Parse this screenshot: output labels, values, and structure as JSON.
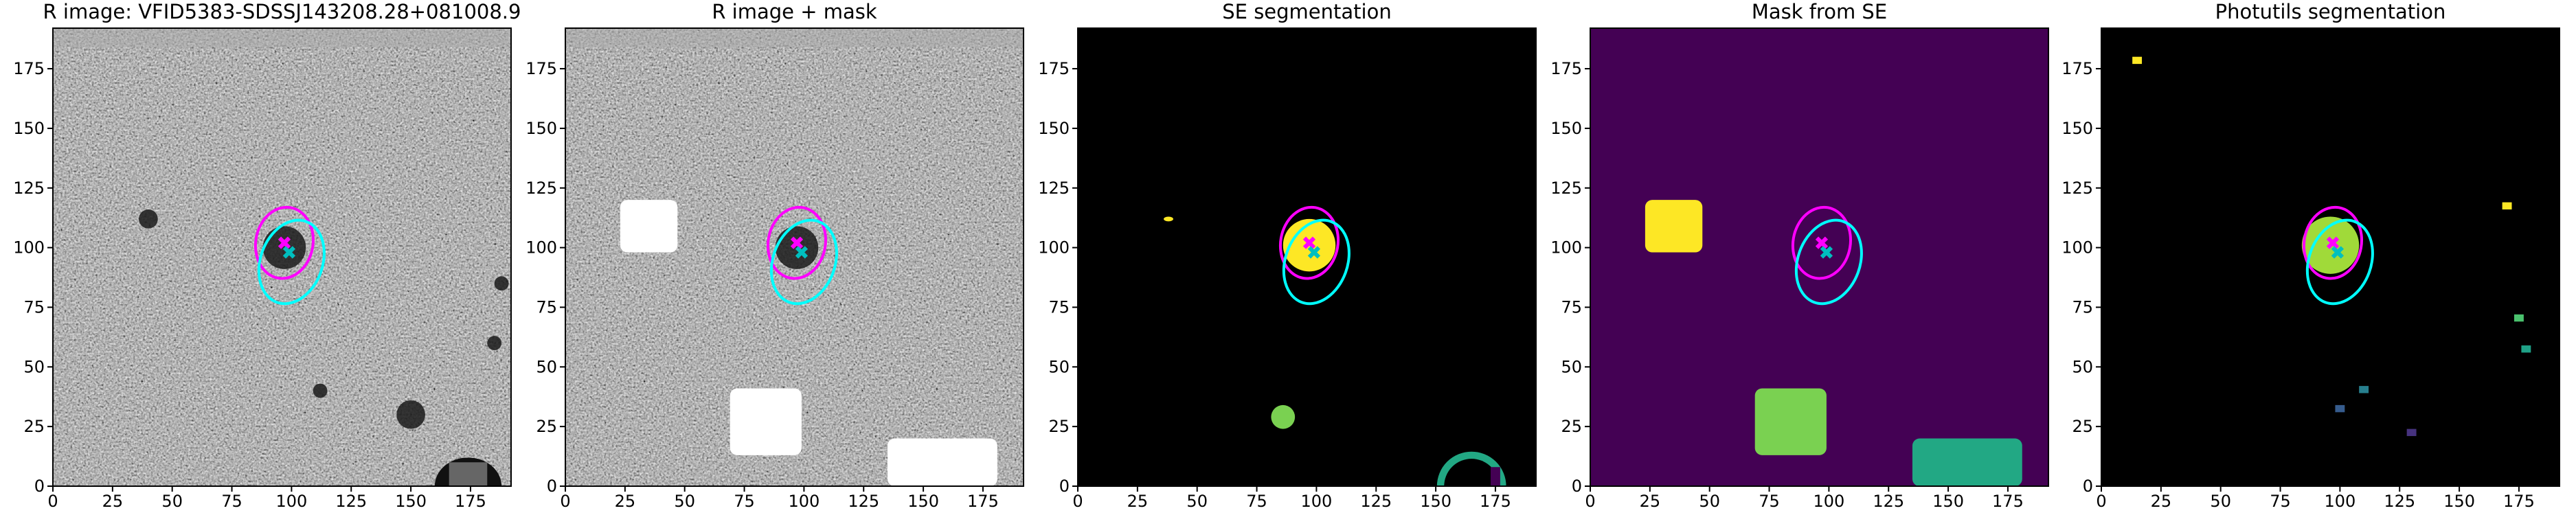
{
  "chart_data": [
    {
      "type": "image",
      "title": "R image: VFID5383-SDSSJ143208.28+081008.9",
      "xlim": [
        0,
        192
      ],
      "ylim": [
        0,
        192
      ],
      "xticks": [
        0,
        25,
        50,
        75,
        100,
        125,
        150,
        175
      ],
      "yticks": [
        0,
        25,
        50,
        75,
        100,
        125,
        150,
        175
      ],
      "ellipses": [
        {
          "x": 97,
          "y": 102,
          "width": 24,
          "height": 30,
          "angle": 10,
          "color": "#ff00ff"
        },
        {
          "x": 100,
          "y": 94,
          "width": 26,
          "height": 36,
          "angle": 20,
          "color": "#00ffff"
        }
      ],
      "markers": [
        {
          "x": 97,
          "y": 102,
          "color": "#ff00ff"
        },
        {
          "x": 99,
          "y": 98,
          "color": "#00bfbf"
        }
      ]
    },
    {
      "type": "image",
      "title": "R image + mask",
      "xlim": [
        0,
        192
      ],
      "ylim": [
        0,
        192
      ],
      "xticks": [
        0,
        25,
        50,
        75,
        100,
        125,
        150,
        175
      ],
      "yticks": [
        0,
        25,
        50,
        75,
        100,
        125,
        150,
        175
      ],
      "ellipses": [
        {
          "x": 97,
          "y": 102,
          "width": 24,
          "height": 30,
          "angle": 10,
          "color": "#ff00ff"
        },
        {
          "x": 100,
          "y": 94,
          "width": 26,
          "height": 36,
          "angle": 20,
          "color": "#00ffff"
        }
      ],
      "markers": [
        {
          "x": 97,
          "y": 102,
          "color": "#ff00ff"
        },
        {
          "x": 99,
          "y": 98,
          "color": "#00bfbf"
        }
      ]
    },
    {
      "type": "image",
      "title": "SE segmentation",
      "xlim": [
        0,
        192
      ],
      "ylim": [
        0,
        192
      ],
      "xticks": [
        0,
        25,
        50,
        75,
        100,
        125,
        150,
        175
      ],
      "yticks": [
        0,
        25,
        50,
        75,
        100,
        125,
        150,
        175
      ],
      "ellipses": [
        {
          "x": 97,
          "y": 102,
          "width": 24,
          "height": 30,
          "angle": 10,
          "color": "#ff00ff"
        },
        {
          "x": 100,
          "y": 94,
          "width": 26,
          "height": 36,
          "angle": 20,
          "color": "#00ffff"
        }
      ],
      "markers": [
        {
          "x": 97,
          "y": 102,
          "color": "#ff00ff"
        },
        {
          "x": 99,
          "y": 98,
          "color": "#00bfbf"
        }
      ]
    },
    {
      "type": "image",
      "title": "Mask from SE",
      "xlim": [
        0,
        192
      ],
      "ylim": [
        0,
        192
      ],
      "xticks": [
        0,
        25,
        50,
        75,
        100,
        125,
        150,
        175
      ],
      "yticks": [
        0,
        25,
        50,
        75,
        100,
        125,
        150,
        175
      ],
      "ellipses": [
        {
          "x": 97,
          "y": 102,
          "width": 24,
          "height": 30,
          "angle": 10,
          "color": "#ff00ff"
        },
        {
          "x": 100,
          "y": 94,
          "width": 26,
          "height": 36,
          "angle": 20,
          "color": "#00ffff"
        }
      ],
      "markers": [
        {
          "x": 97,
          "y": 102,
          "color": "#ff00ff"
        },
        {
          "x": 99,
          "y": 98,
          "color": "#00bfbf"
        }
      ]
    },
    {
      "type": "image",
      "title": "Photutils segmentation",
      "xlim": [
        0,
        192
      ],
      "ylim": [
        0,
        192
      ],
      "xticks": [
        0,
        25,
        50,
        75,
        100,
        125,
        150,
        175
      ],
      "yticks": [
        0,
        25,
        50,
        75,
        100,
        125,
        150,
        175
      ],
      "ellipses": [
        {
          "x": 97,
          "y": 102,
          "width": 24,
          "height": 30,
          "angle": 10,
          "color": "#ff00ff"
        },
        {
          "x": 100,
          "y": 94,
          "width": 26,
          "height": 36,
          "angle": 20,
          "color": "#00ffff"
        }
      ],
      "markers": [
        {
          "x": 97,
          "y": 102,
          "color": "#ff00ff"
        },
        {
          "x": 99,
          "y": 98,
          "color": "#00bfbf"
        }
      ]
    }
  ]
}
